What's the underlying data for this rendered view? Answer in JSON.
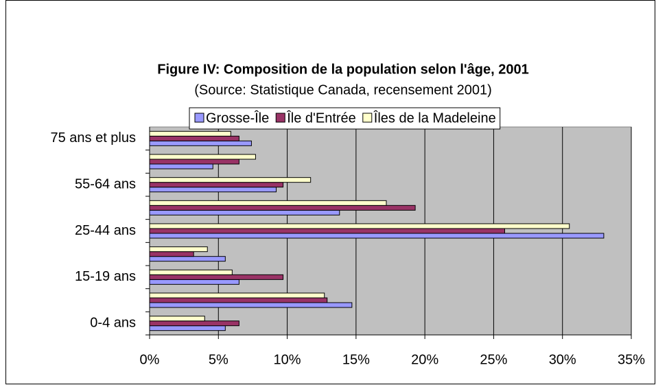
{
  "chart_data": {
    "type": "hbar",
    "title": "Figure IV: Composition de la population selon l'âge, 2001",
    "subtitle": "(Source: Statistique Canada, recensement 2001)",
    "categories": [
      "0-4 ans",
      null,
      "15-19 ans",
      null,
      "25-44 ans",
      null,
      "55-64 ans",
      null,
      "75 ans et plus"
    ],
    "series": [
      {
        "name": "Grosse-Île",
        "color": "#9999ff",
        "values": [
          5.5,
          14.7,
          6.5,
          5.5,
          33.0,
          13.8,
          9.2,
          4.6,
          7.4
        ]
      },
      {
        "name": "Île d'Entrée",
        "color": "#993366",
        "values": [
          6.5,
          12.9,
          9.7,
          3.2,
          25.8,
          19.3,
          9.7,
          6.5,
          6.5
        ]
      },
      {
        "name": "Îles de la Madeleine",
        "color": "#ffffcc",
        "values": [
          4.0,
          12.7,
          6.0,
          4.2,
          30.5,
          17.2,
          11.7,
          7.7,
          5.9
        ]
      }
    ],
    "xlim": [
      0,
      35
    ],
    "xticks": [
      {
        "value": 0,
        "label": "0%"
      },
      {
        "value": 5,
        "label": "5%"
      },
      {
        "value": 10,
        "label": "10%"
      },
      {
        "value": 15,
        "label": "15%"
      },
      {
        "value": 20,
        "label": "20%"
      },
      {
        "value": 25,
        "label": "25%"
      },
      {
        "value": 30,
        "label": "30%"
      },
      {
        "value": 35,
        "label": "35%"
      }
    ],
    "grid": true,
    "legend": "top"
  }
}
